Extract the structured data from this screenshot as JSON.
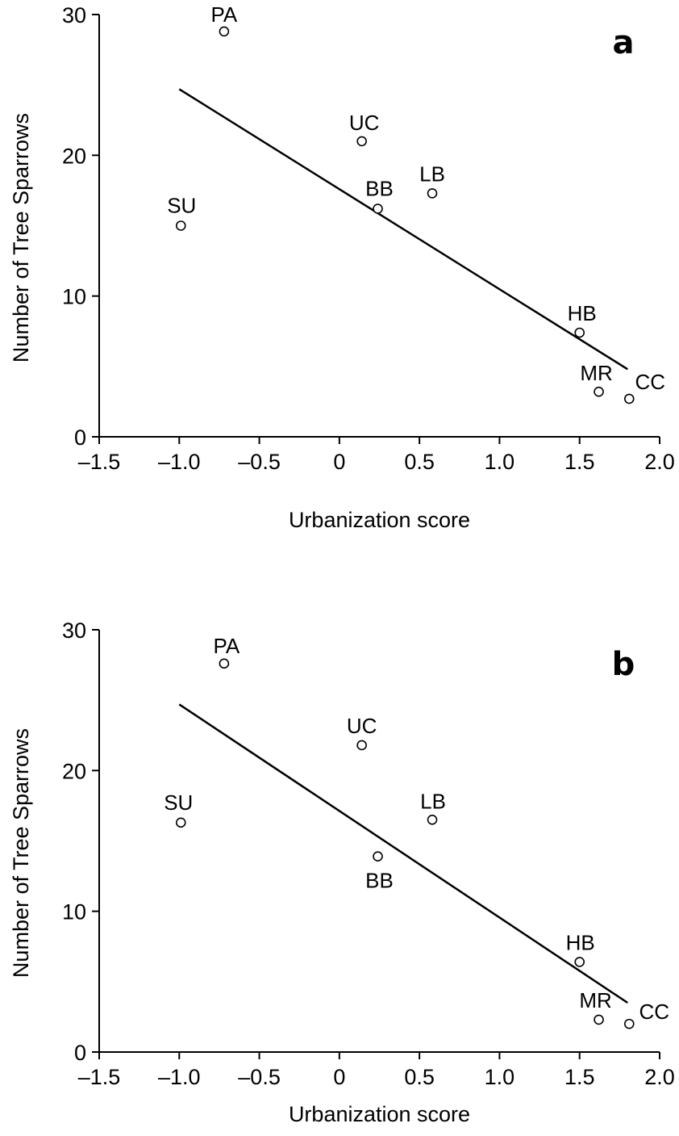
{
  "chart_data": [
    {
      "type": "scatter",
      "panel_label": "a",
      "xlabel": "Urbanization score",
      "ylabel": "Number of Tree Sparrows",
      "xlim": [
        -1.5,
        2.0
      ],
      "ylim": [
        0,
        30
      ],
      "x_ticks": [
        -1.5,
        -1.0,
        -0.5,
        0,
        0.5,
        1.0,
        1.5,
        2.0
      ],
      "x_tick_labels": [
        "–1.5",
        "–1.0",
        "–0.5",
        "0",
        "0.5",
        "1.0",
        "1.5",
        "2.0"
      ],
      "y_ticks": [
        0,
        10,
        20,
        30
      ],
      "y_tick_labels": [
        "0",
        "10",
        "20",
        "30"
      ],
      "grid": false,
      "points": [
        {
          "label": "PA",
          "x": -0.72,
          "y": 28.8
        },
        {
          "label": "UC",
          "x": 0.14,
          "y": 21.0
        },
        {
          "label": "LB",
          "x": 0.58,
          "y": 17.3
        },
        {
          "label": "BB",
          "x": 0.24,
          "y": 16.2
        },
        {
          "label": "SU",
          "x": -0.99,
          "y": 15.0
        },
        {
          "label": "HB",
          "x": 1.5,
          "y": 7.4
        },
        {
          "label": "MR",
          "x": 1.62,
          "y": 3.2
        },
        {
          "label": "CC",
          "x": 1.81,
          "y": 2.7
        }
      ],
      "fit_line": {
        "x": [
          -1.0,
          1.8
        ],
        "y": [
          24.7,
          4.8
        ]
      }
    },
    {
      "type": "scatter",
      "panel_label": "b",
      "xlabel": "Urbanization score",
      "ylabel": "Number of Tree Sparrows",
      "xlim": [
        -1.5,
        2.0
      ],
      "ylim": [
        0,
        30
      ],
      "x_ticks": [
        -1.5,
        -1.0,
        -0.5,
        0,
        0.5,
        1.0,
        1.5,
        2.0
      ],
      "x_tick_labels": [
        "–1.5",
        "–1.0",
        "–0.5",
        "0",
        "0.5",
        "1.0",
        "1.5",
        "2.0"
      ],
      "y_ticks": [
        0,
        10,
        20,
        30
      ],
      "y_tick_labels": [
        "0",
        "10",
        "20",
        "30"
      ],
      "grid": false,
      "points": [
        {
          "label": "PA",
          "x": -0.72,
          "y": 27.6
        },
        {
          "label": "UC",
          "x": 0.14,
          "y": 21.8
        },
        {
          "label": "LB",
          "x": 0.58,
          "y": 16.5
        },
        {
          "label": "SU",
          "x": -0.99,
          "y": 16.3
        },
        {
          "label": "BB",
          "x": 0.24,
          "y": 13.9
        },
        {
          "label": "HB",
          "x": 1.5,
          "y": 6.4
        },
        {
          "label": "MR",
          "x": 1.62,
          "y": 2.3
        },
        {
          "label": "CC",
          "x": 1.81,
          "y": 2.0
        }
      ],
      "fit_line": {
        "x": [
          -1.0,
          1.8
        ],
        "y": [
          24.7,
          3.5
        ]
      }
    }
  ]
}
